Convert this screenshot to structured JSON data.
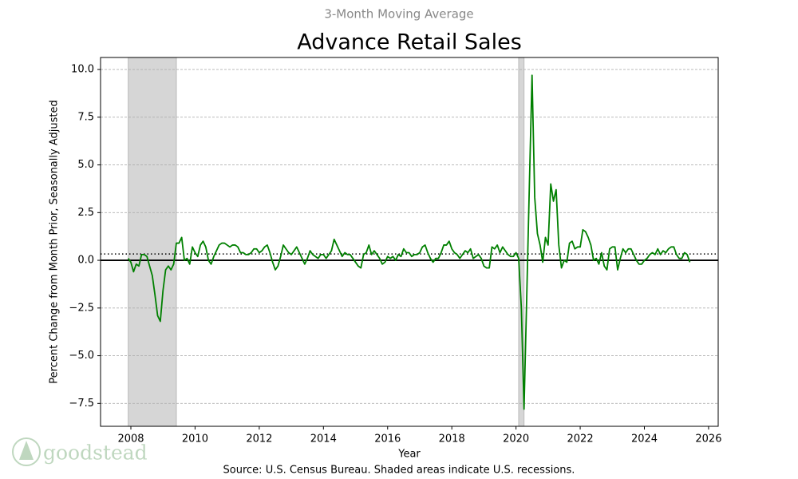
{
  "chart_data": {
    "type": "line",
    "subtitle": "3-Month Moving Average",
    "title": "Advance Retail Sales",
    "y_label": "Percent Change from Month Prior, Seasonally Adjusted",
    "x_label": "Year",
    "source": "Source:  U.S. Census Bureau. Shaded areas indicate U.S. recessions.",
    "logo": "goodstead",
    "xlim": [
      2007.055,
      2026.3
    ],
    "ylim": [
      -8.7,
      10.63
    ],
    "xticks": [
      2008,
      2010,
      2012,
      2014,
      2016,
      2018,
      2020,
      2022,
      2024,
      2026
    ],
    "yticks": [
      {
        "value": -7.5,
        "label": "−7.5"
      },
      {
        "value": -5,
        "label": "−5.0"
      },
      {
        "value": -2.5,
        "label": "−2.5"
      },
      {
        "value": 0,
        "label": "0.0"
      },
      2.5,
      {
        "value": 5,
        "label": "5.0"
      },
      7.5,
      {
        "value": 10,
        "label": "10.0"
      }
    ],
    "grid": true,
    "zero_line": 0,
    "dotted_line": 0.33,
    "recessions": [
      [
        2007.917,
        2009.417
      ],
      [
        2020.083,
        2020.25
      ]
    ],
    "recession_color": "#d6d6d6",
    "x": [
      2007.917,
      2008,
      2008.083,
      2008.167,
      2008.25,
      2008.333,
      2008.417,
      2008.5,
      2008.583,
      2008.667,
      2008.75,
      2008.833,
      2008.917,
      2009,
      2009.083,
      2009.167,
      2009.25,
      2009.333,
      2009.417,
      2009.5,
      2009.583,
      2009.667,
      2009.75,
      2009.833,
      2009.917,
      2010,
      2010.083,
      2010.167,
      2010.25,
      2010.333,
      2010.417,
      2010.5,
      2010.583,
      2010.667,
      2010.75,
      2010.833,
      2010.917,
      2011,
      2011.083,
      2011.167,
      2011.25,
      2011.333,
      2011.417,
      2011.5,
      2011.583,
      2011.667,
      2011.75,
      2011.833,
      2011.917,
      2012,
      2012.083,
      2012.167,
      2012.25,
      2012.333,
      2012.417,
      2012.5,
      2012.583,
      2012.667,
      2012.75,
      2012.833,
      2012.917,
      2013,
      2013.083,
      2013.167,
      2013.25,
      2013.333,
      2013.417,
      2013.5,
      2013.583,
      2013.667,
      2013.75,
      2013.833,
      2013.917,
      2014,
      2014.083,
      2014.167,
      2014.25,
      2014.333,
      2014.417,
      2014.5,
      2014.583,
      2014.667,
      2014.75,
      2014.833,
      2014.917,
      2015,
      2015.083,
      2015.167,
      2015.25,
      2015.333,
      2015.417,
      2015.5,
      2015.583,
      2015.667,
      2015.75,
      2015.833,
      2015.917,
      2016,
      2016.083,
      2016.167,
      2016.25,
      2016.333,
      2016.417,
      2016.5,
      2016.583,
      2016.667,
      2016.75,
      2016.833,
      2016.917,
      2017,
      2017.083,
      2017.167,
      2017.25,
      2017.333,
      2017.417,
      2017.5,
      2017.583,
      2017.667,
      2017.75,
      2017.833,
      2017.917,
      2018,
      2018.083,
      2018.167,
      2018.25,
      2018.333,
      2018.417,
      2018.5,
      2018.583,
      2018.667,
      2018.75,
      2018.833,
      2018.917,
      2019,
      2019.083,
      2019.167,
      2019.25,
      2019.333,
      2019.417,
      2019.5,
      2019.583,
      2019.667,
      2019.75,
      2019.833,
      2019.917,
      2020,
      2020.083,
      2020.167,
      2020.25,
      2020.333,
      2020.417,
      2020.5,
      2020.583,
      2020.667,
      2020.75,
      2020.833,
      2020.917,
      2021,
      2021.083,
      2021.167,
      2021.25,
      2021.333,
      2021.417,
      2021.5,
      2021.583,
      2021.667,
      2021.75,
      2021.833,
      2021.917,
      2022,
      2022.083,
      2022.167,
      2022.25,
      2022.333,
      2022.417,
      2022.5,
      2022.583,
      2022.667,
      2022.75,
      2022.833,
      2022.917,
      2023,
      2023.083,
      2023.167,
      2023.25,
      2023.333,
      2023.417,
      2023.5,
      2023.583,
      2023.667,
      2023.75,
      2023.833,
      2023.917,
      2024,
      2024.083,
      2024.167,
      2024.25,
      2024.333,
      2024.417,
      2024.5,
      2024.583,
      2024.667,
      2024.75,
      2024.833,
      2024.917,
      2025,
      2025.083,
      2025.167,
      2025.25,
      2025.333,
      2025.417
    ],
    "series": [
      {
        "color": "#008000",
        "values": [
          0.1,
          -0.1,
          -0.6,
          -0.2,
          -0.3,
          0.3,
          0.3,
          0.2,
          -0.3,
          -0.8,
          -1.8,
          -2.9,
          -3.2,
          -1.6,
          -0.5,
          -0.3,
          -0.5,
          -0.2,
          0.9,
          0.9,
          1.2,
          0,
          0.1,
          -0.2,
          0.7,
          0.4,
          0.2,
          0.8,
          1.0,
          0.7,
          0,
          -0.2,
          0.2,
          0.5,
          0.8,
          0.9,
          0.9,
          0.8,
          0.7,
          0.8,
          0.8,
          0.7,
          0.4,
          0.4,
          0.3,
          0.3,
          0.4,
          0.6,
          0.6,
          0.4,
          0.5,
          0.7,
          0.8,
          0.4,
          -0.1,
          -0.5,
          -0.3,
          0.2,
          0.8,
          0.6,
          0.4,
          0.3,
          0.5,
          0.7,
          0.4,
          0.1,
          -0.2,
          0.1,
          0.5,
          0.3,
          0.2,
          0.1,
          0.3,
          0.3,
          0.1,
          0.3,
          0.5,
          1.1,
          0.8,
          0.5,
          0.2,
          0.4,
          0.3,
          0.3,
          0.1,
          -0.1,
          -0.3,
          -0.4,
          0.3,
          0.4,
          0.8,
          0.3,
          0.5,
          0.3,
          0.1,
          -0.2,
          -0.1,
          0.2,
          0.1,
          0.2,
          0,
          0.3,
          0.2,
          0.6,
          0.4,
          0.4,
          0.2,
          0.3,
          0.3,
          0.4,
          0.7,
          0.8,
          0.4,
          0.1,
          -0.1,
          0.1,
          0.1,
          0.4,
          0.8,
          0.8,
          1.0,
          0.6,
          0.4,
          0.3,
          0.1,
          0.3,
          0.5,
          0.4,
          0.6,
          0.1,
          0.2,
          0.3,
          0.1,
          -0.3,
          -0.4,
          -0.4,
          0.7,
          0.6,
          0.8,
          0.4,
          0.7,
          0.5,
          0.3,
          0.2,
          0.2,
          0.4,
          0.1,
          -2.5,
          -7.8,
          -2.0,
          4.0,
          9.7,
          3.3,
          1.4,
          0.8,
          -0.1,
          1.2,
          0.8,
          4.0,
          3.1,
          3.7,
          0.8,
          -0.4,
          0,
          -0.1,
          0.9,
          1.0,
          0.6,
          0.7,
          0.7,
          1.6,
          1.5,
          1.2,
          0.8,
          0,
          0.1,
          -0.2,
          0.4,
          -0.3,
          -0.5,
          0.6,
          0.7,
          0.7,
          -0.5,
          0.1,
          0.6,
          0.4,
          0.6,
          0.6,
          0.3,
          0,
          -0.2,
          -0.2,
          0,
          0.1,
          0.3,
          0.4,
          0.3,
          0.6,
          0.3,
          0.5,
          0.4,
          0.6,
          0.7,
          0.7,
          0.3,
          0.1,
          0.1,
          0.4,
          0.3,
          -0.1
        ]
      }
    ]
  }
}
